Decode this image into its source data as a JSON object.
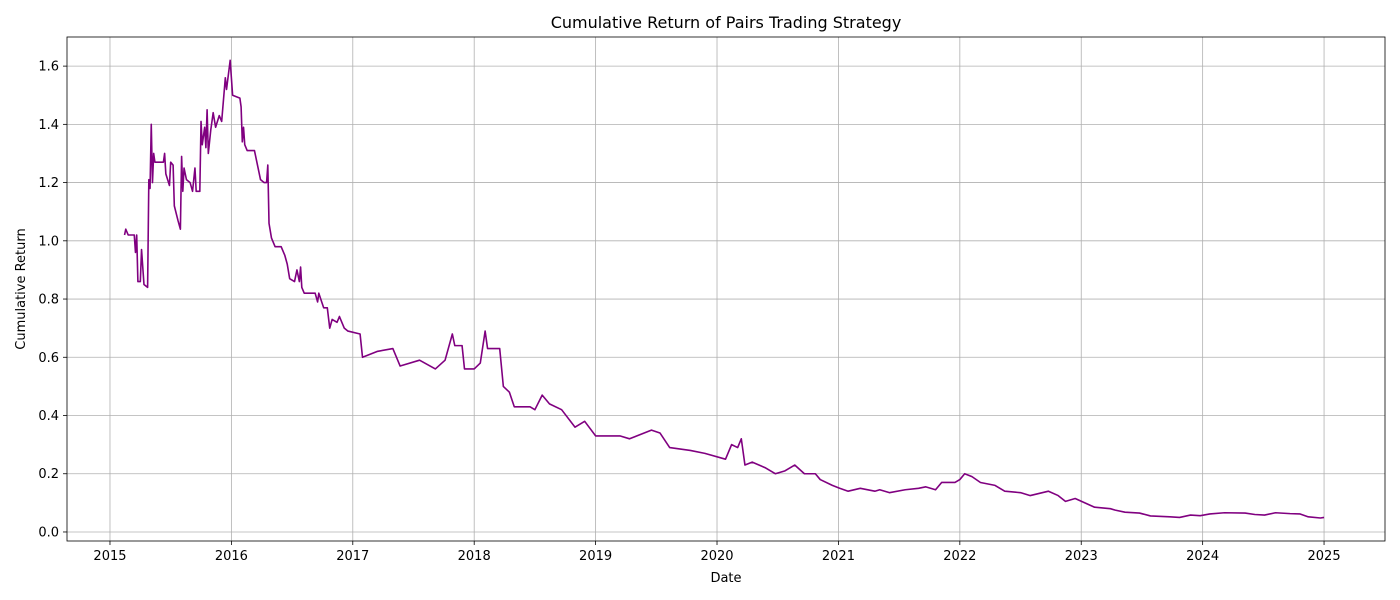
{
  "chart_data": {
    "type": "line",
    "title": "Cumulative Return of Pairs Trading Strategy",
    "x_label": "Date",
    "y_label": "Cumulative Return",
    "color": "#800080",
    "grid": true,
    "xlim": [
      2014.646,
      2025.502
    ],
    "xticks": [
      2015,
      2016,
      2017,
      2018,
      2019,
      2020,
      2021,
      2022,
      2023,
      2024,
      2025
    ],
    "ylim": [
      -0.031,
      1.7
    ],
    "yticks": [
      {
        "value": 0,
        "label": "0.0"
      },
      {
        "value": 0.2,
        "label": "0.2"
      },
      {
        "value": 0.4,
        "label": "0.4"
      },
      {
        "value": 0.6,
        "label": "0.6"
      },
      {
        "value": 0.8,
        "label": "0.8"
      },
      {
        "value": 1,
        "label": "1.0"
      },
      {
        "value": 1.2,
        "label": "1.2"
      },
      {
        "value": 1.4,
        "label": "1.4"
      },
      {
        "value": 1.6,
        "label": "1.6"
      }
    ],
    "x": [
      2015.12,
      2015.13,
      2015.15,
      2015.2,
      2015.21,
      2015.22,
      2015.23,
      2015.25,
      2015.26,
      2015.28,
      2015.31,
      2015.32,
      2015.33,
      2015.34,
      2015.35,
      2015.36,
      2015.37,
      2015.44,
      2015.45,
      2015.46,
      2015.49,
      2015.5,
      2015.52,
      2015.53,
      2015.56,
      2015.58,
      2015.59,
      2015.6,
      2015.61,
      2015.63,
      2015.66,
      2015.68,
      2015.7,
      2015.71,
      2015.74,
      2015.75,
      2015.76,
      2015.78,
      2015.79,
      2015.8,
      2015.81,
      2015.83,
      2015.85,
      2015.87,
      2015.9,
      2015.92,
      2015.95,
      2015.96,
      2015.99,
      2016.01,
      2016.07,
      2016.08,
      2016.09,
      2016.1,
      2016.11,
      2016.13,
      2016.19,
      2016.21,
      2016.24,
      2016.27,
      2016.29,
      2016.3,
      2016.31,
      2016.33,
      2016.36,
      2016.41,
      2016.44,
      2016.46,
      2016.48,
      2016.52,
      2016.54,
      2016.56,
      2016.57,
      2016.58,
      2016.6,
      2016.69,
      2016.71,
      2016.72,
      2016.76,
      2016.79,
      2016.81,
      2016.83,
      2016.87,
      2016.89,
      2016.93,
      2016.96,
      2017.06,
      2017.08,
      2017.2,
      2017.33,
      2017.39,
      2017.55,
      2017.68,
      2017.76,
      2017.82,
      2017.84,
      2017.9,
      2017.92,
      2018.0,
      2018.05,
      2018.09,
      2018.11,
      2018.21,
      2018.24,
      2018.29,
      2018.33,
      2018.46,
      2018.5,
      2018.56,
      2018.62,
      2018.72,
      2018.83,
      2018.91,
      2019.0,
      2019.2,
      2019.28,
      2019.46,
      2019.53,
      2019.61,
      2019.78,
      2019.9,
      2020.07,
      2020.12,
      2020.17,
      2020.2,
      2020.23,
      2020.29,
      2020.4,
      2020.48,
      2020.56,
      2020.64,
      2020.72,
      2020.81,
      2020.85,
      2020.95,
      2021.01,
      2021.08,
      2021.18,
      2021.3,
      2021.34,
      2021.42,
      2021.55,
      2021.66,
      2021.72,
      2021.8,
      2021.85,
      2021.96,
      2022.0,
      2022.04,
      2022.1,
      2022.17,
      2022.29,
      2022.37,
      2022.5,
      2022.58,
      2022.73,
      2022.81,
      2022.87,
      2022.95,
      2023.03,
      2023.11,
      2023.24,
      2023.28,
      2023.36,
      2023.48,
      2023.57,
      2023.73,
      2023.81,
      2023.9,
      2023.98,
      2024.06,
      2024.18,
      2024.35,
      2024.43,
      2024.51,
      2024.6,
      2024.72,
      2024.8,
      2024.87,
      2024.97,
      2025.0
    ],
    "values": [
      1.02,
      1.04,
      1.02,
      1.02,
      0.96,
      1.02,
      0.86,
      0.86,
      0.97,
      0.85,
      0.84,
      1.21,
      1.18,
      1.4,
      1.2,
      1.3,
      1.27,
      1.27,
      1.3,
      1.23,
      1.19,
      1.27,
      1.26,
      1.12,
      1.07,
      1.04,
      1.29,
      1.17,
      1.25,
      1.21,
      1.2,
      1.17,
      1.25,
      1.17,
      1.17,
      1.41,
      1.33,
      1.39,
      1.32,
      1.45,
      1.3,
      1.38,
      1.44,
      1.39,
      1.43,
      1.41,
      1.56,
      1.52,
      1.62,
      1.5,
      1.49,
      1.46,
      1.34,
      1.39,
      1.33,
      1.31,
      1.31,
      1.27,
      1.21,
      1.2,
      1.2,
      1.26,
      1.06,
      1.01,
      0.98,
      0.98,
      0.95,
      0.92,
      0.87,
      0.86,
      0.9,
      0.86,
      0.91,
      0.84,
      0.82,
      0.82,
      0.79,
      0.82,
      0.77,
      0.77,
      0.7,
      0.73,
      0.72,
      0.74,
      0.7,
      0.69,
      0.68,
      0.6,
      0.62,
      0.63,
      0.57,
      0.59,
      0.56,
      0.59,
      0.68,
      0.64,
      0.64,
      0.56,
      0.56,
      0.58,
      0.69,
      0.63,
      0.63,
      0.5,
      0.48,
      0.43,
      0.43,
      0.42,
      0.47,
      0.44,
      0.42,
      0.36,
      0.38,
      0.33,
      0.33,
      0.32,
      0.35,
      0.34,
      0.29,
      0.28,
      0.27,
      0.25,
      0.3,
      0.29,
      0.32,
      0.23,
      0.24,
      0.22,
      0.2,
      0.21,
      0.23,
      0.2,
      0.2,
      0.18,
      0.16,
      0.15,
      0.14,
      0.15,
      0.14,
      0.145,
      0.135,
      0.145,
      0.15,
      0.155,
      0.145,
      0.17,
      0.17,
      0.18,
      0.2,
      0.19,
      0.17,
      0.16,
      0.14,
      0.135,
      0.125,
      0.14,
      0.125,
      0.105,
      0.115,
      0.1,
      0.085,
      0.08,
      0.075,
      0.068,
      0.065,
      0.055,
      0.052,
      0.05,
      0.058,
      0.056,
      0.062,
      0.066,
      0.065,
      0.06,
      0.058,
      0.066,
      0.063,
      0.062,
      0.052,
      0.048,
      0.05
    ]
  }
}
